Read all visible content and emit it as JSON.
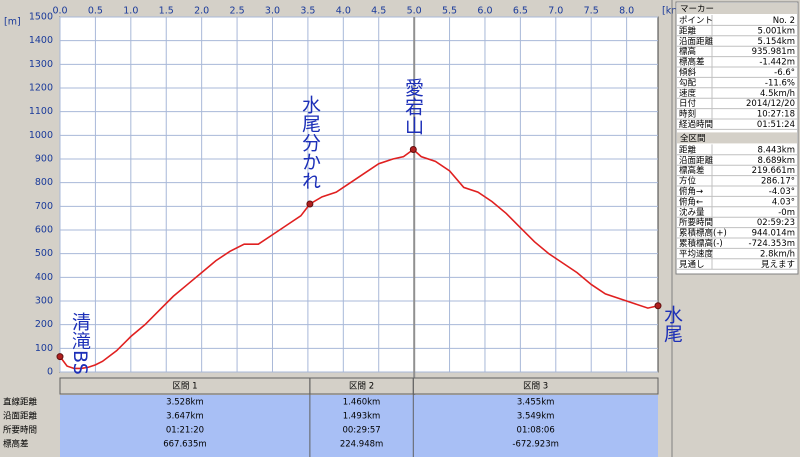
{
  "chart_data": {
    "type": "line",
    "x_unit": "[km]",
    "y_unit": "[m]",
    "xlim": [
      0,
      8.443
    ],
    "ylim": [
      0,
      1500
    ],
    "xticks": [
      {
        "value": 0,
        "label": "0.0"
      },
      0.5,
      {
        "value": 1,
        "label": "1.0"
      },
      1.5,
      {
        "value": 2,
        "label": "2.0"
      },
      2.5,
      {
        "value": 3,
        "label": "3.0"
      },
      3.5,
      {
        "value": 4,
        "label": "4.0"
      },
      4.5,
      {
        "value": 5,
        "label": "5.0"
      },
      5.5,
      {
        "value": 6,
        "label": "6.0"
      },
      6.5,
      {
        "value": 7,
        "label": "7.0"
      },
      7.5,
      {
        "value": 8,
        "label": "8.0"
      }
    ],
    "yticks": [
      0,
      100,
      200,
      300,
      400,
      500,
      600,
      700,
      800,
      900,
      1000,
      1100,
      1200,
      1300,
      1400,
      1500
    ],
    "grid": true,
    "color": "#e02020",
    "x": [
      0,
      0.1,
      0.2,
      0.3,
      0.4,
      0.5,
      0.6,
      0.8,
      1.0,
      1.2,
      1.4,
      1.6,
      1.8,
      2.0,
      2.2,
      2.4,
      2.6,
      2.8,
      3.0,
      3.2,
      3.4,
      3.528,
      3.7,
      3.9,
      4.1,
      4.3,
      4.5,
      4.7,
      4.85,
      4.988,
      5.1,
      5.3,
      5.5,
      5.7,
      5.9,
      6.1,
      6.3,
      6.5,
      6.7,
      6.9,
      7.1,
      7.3,
      7.5,
      7.7,
      7.9,
      8.1,
      8.3,
      8.443
    ],
    "values": [
      65,
      25,
      15,
      15,
      20,
      30,
      45,
      90,
      150,
      200,
      260,
      320,
      370,
      420,
      470,
      510,
      540,
      540,
      580,
      620,
      660,
      710,
      740,
      760,
      800,
      840,
      880,
      900,
      910,
      940,
      910,
      890,
      850,
      780,
      760,
      720,
      670,
      610,
      550,
      500,
      460,
      420,
      370,
      330,
      310,
      290,
      270,
      280
    ],
    "cursor_x": 5.001,
    "markers": [
      {
        "label": "清滝BS",
        "x": 0,
        "y": 65
      },
      {
        "label": "水尾分かれ",
        "x": 3.528,
        "y": 710
      },
      {
        "label": "愛宕山",
        "x": 4.988,
        "y": 940
      },
      {
        "label": "水尾",
        "x": 8.443,
        "y": 280
      }
    ]
  },
  "sections": {
    "headers": [
      "区間 1",
      "区間 2",
      "区間 3"
    ],
    "row_labels": [
      "直線距離",
      "沿面距離",
      "所要時間",
      "標高差"
    ],
    "rows": [
      [
        "3.528km",
        "1.460km",
        "3.455km"
      ],
      [
        "3.647km",
        "1.493km",
        "3.549km"
      ],
      [
        "01:21:20",
        "00:29:57",
        "01:08:06"
      ],
      [
        "667.635m",
        "224.948m",
        "-672.923m"
      ]
    ]
  },
  "marker_panel": {
    "title": "マーカー",
    "rows": [
      [
        "ポイント",
        "No. 2"
      ],
      [
        "距離",
        "5.001km"
      ],
      [
        "沿面距離",
        "5.154km"
      ],
      [
        "標高",
        "935.981m"
      ],
      [
        "標高差",
        "-1.442m"
      ],
      [
        "傾斜",
        "-6.6°"
      ],
      [
        "勾配",
        "-11.6%"
      ],
      [
        "速度",
        "4.5km/h"
      ],
      [
        "日付",
        "2014/12/20"
      ],
      [
        "時刻",
        "10:27:18"
      ],
      [
        "経過時間",
        "01:51:24"
      ]
    ]
  },
  "total_panel": {
    "title": "全区間",
    "rows": [
      [
        "距離",
        "8.443km"
      ],
      [
        "沿面距離",
        "8.689km"
      ],
      [
        "標高差",
        "219.661m"
      ],
      [
        "方位",
        "286.17°"
      ],
      [
        "俯角→",
        "-4.03°"
      ],
      [
        "俯角←",
        "4.03°"
      ],
      [
        "沈み量",
        "-0m"
      ],
      [
        "所要時間",
        "02:59:23"
      ],
      [
        "累積標高(+)",
        "944.014m"
      ],
      [
        "累積標高(-)",
        "-724.353m"
      ],
      [
        "平均速度",
        "2.8km/h"
      ],
      [
        "見通し",
        "見えます"
      ]
    ]
  }
}
